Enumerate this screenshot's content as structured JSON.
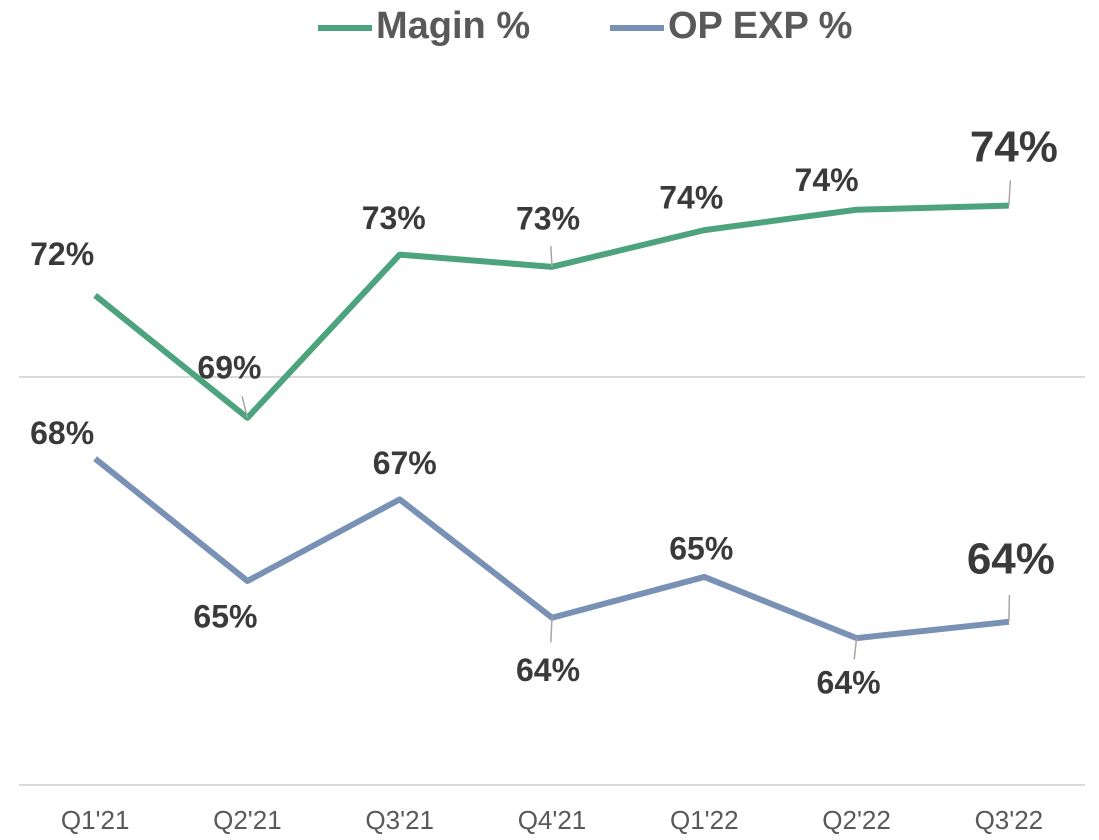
{
  "chart_data": {
    "type": "line",
    "categories": [
      "Q1'21",
      "Q2'21",
      "Q3'21",
      "Q4'21",
      "Q1'22",
      "Q2'22",
      "Q3'22"
    ],
    "series": [
      {
        "name": "Magin %",
        "color": "#4ea37f",
        "values": [
          72.0,
          69.0,
          73.0,
          72.7,
          73.6,
          74.1,
          74.2
        ],
        "value_labels": [
          "72%",
          "69%",
          "73%",
          "73%",
          "74%",
          "74%",
          "74%"
        ]
      },
      {
        "name": "OP EXP %",
        "color": "#7a91b6",
        "values": [
          68.0,
          65.0,
          67.0,
          64.1,
          65.1,
          63.6,
          64.0
        ],
        "value_labels": [
          "68%",
          "65%",
          "67%",
          "64%",
          "65%",
          "64%",
          "64%"
        ]
      }
    ],
    "ylim": [
      60,
      77.5
    ],
    "yticks": [
      60,
      70
    ],
    "grid": true,
    "legend": "top"
  }
}
